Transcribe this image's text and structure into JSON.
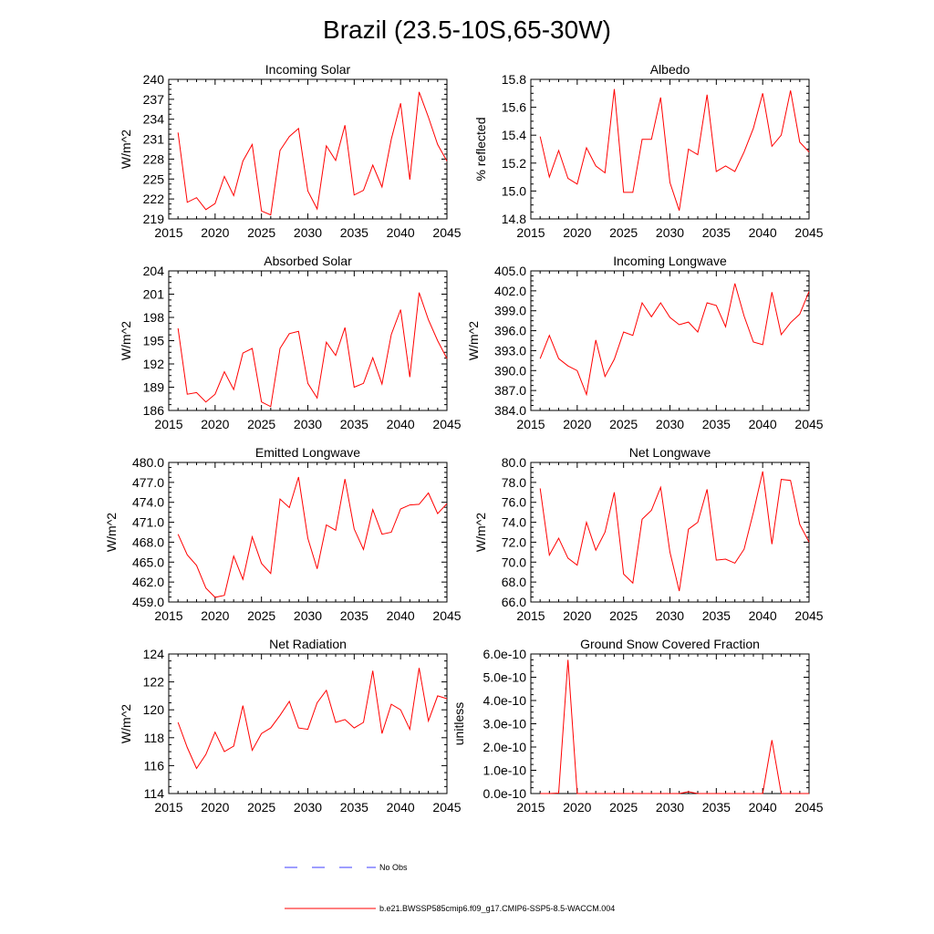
{
  "figure": {
    "title": "Brazil (23.5-10S,65-30W)"
  },
  "legend": {
    "items": [
      {
        "label": "No Obs",
        "style": "dashed",
        "color": "#3c3cff"
      },
      {
        "label": "b.e21.BWSSP585cmip6.f09_g17.CMIP6-SSP5-8.5-WACCM.004",
        "style": "solid",
        "color": "#ff0000"
      }
    ]
  },
  "chart_data": [
    {
      "type": "line",
      "title": "Incoming Solar",
      "xlabel": "",
      "ylabel": "W/m^2",
      "xlim": [
        2015,
        2045
      ],
      "ylim": [
        219,
        240
      ],
      "xticks": [
        2015,
        2020,
        2025,
        2030,
        2035,
        2040,
        2045
      ],
      "xtick_labels": [
        "2015",
        "2020",
        "2025",
        "2030",
        "2035",
        "2040",
        "2045"
      ],
      "yticks": [
        219,
        222,
        225,
        228,
        231,
        234,
        237,
        240
      ],
      "ytick_labels": [
        "219",
        "222",
        "225",
        "228",
        "231",
        "234",
        "237",
        "240"
      ],
      "series": [
        {
          "name": "b.e21.BWSSP585cmip6.f09_g17.CMIP6-SSP5-8.5-WACCM.004",
          "color": "#ff0000",
          "x": [
            2016,
            2017,
            2018,
            2019,
            2020,
            2021,
            2022,
            2023,
            2024,
            2025,
            2026,
            2027,
            2028,
            2029,
            2030,
            2031,
            2032,
            2033,
            2034,
            2035,
            2036,
            2037,
            2038,
            2039,
            2040,
            2041,
            2042,
            2043,
            2044,
            2045
          ],
          "values": [
            232.0,
            221.5,
            222.2,
            220.4,
            221.3,
            225.4,
            222.5,
            227.7,
            230.2,
            220.2,
            219.6,
            229.3,
            231.4,
            232.6,
            223.2,
            220.5,
            230.0,
            227.8,
            233.1,
            222.6,
            223.3,
            227.1,
            223.8,
            231.0,
            236.4,
            224.9,
            238.1,
            234.3,
            230.2,
            227.7
          ]
        }
      ]
    },
    {
      "type": "line",
      "title": "Albedo",
      "xlabel": "",
      "ylabel": "% reflected",
      "xlim": [
        2015,
        2045
      ],
      "ylim": [
        14.8,
        15.8
      ],
      "xticks": [
        2015,
        2020,
        2025,
        2030,
        2035,
        2040,
        2045
      ],
      "xtick_labels": [
        "2015",
        "2020",
        "2025",
        "2030",
        "2035",
        "2040",
        "2045"
      ],
      "yticks": [
        14.8,
        15.0,
        15.2,
        15.4,
        15.6,
        15.8
      ],
      "ytick_labels": [
        "14.8",
        "15.0",
        "15.2",
        "15.4",
        "15.6",
        "15.8"
      ],
      "series": [
        {
          "name": "b.e21.BWSSP585cmip6.f09_g17.CMIP6-SSP5-8.5-WACCM.004",
          "color": "#ff0000",
          "x": [
            2016,
            2017,
            2018,
            2019,
            2020,
            2021,
            2022,
            2023,
            2024,
            2025,
            2026,
            2027,
            2028,
            2029,
            2030,
            2031,
            2032,
            2033,
            2034,
            2035,
            2036,
            2037,
            2038,
            2039,
            2040,
            2041,
            2042,
            2043,
            2044,
            2045
          ],
          "values": [
            15.39,
            15.1,
            15.29,
            15.09,
            15.05,
            15.31,
            15.18,
            15.13,
            15.73,
            14.99,
            14.99,
            15.37,
            15.37,
            15.67,
            15.06,
            14.86,
            15.3,
            15.26,
            15.69,
            15.14,
            15.18,
            15.14,
            15.28,
            15.45,
            15.7,
            15.32,
            15.4,
            15.72,
            15.35,
            15.28
          ]
        }
      ]
    },
    {
      "type": "line",
      "title": "Absorbed Solar",
      "xlabel": "",
      "ylabel": "W/m^2",
      "xlim": [
        2015,
        2045
      ],
      "ylim": [
        186,
        204
      ],
      "xticks": [
        2015,
        2020,
        2025,
        2030,
        2035,
        2040,
        2045
      ],
      "xtick_labels": [
        "2015",
        "2020",
        "2025",
        "2030",
        "2035",
        "2040",
        "2045"
      ],
      "yticks": [
        186,
        189,
        192,
        195,
        198,
        201,
        204
      ],
      "ytick_labels": [
        "186",
        "189",
        "192",
        "195",
        "198",
        "201",
        "204"
      ],
      "series": [
        {
          "name": "b.e21.BWSSP585cmip6.f09_g17.CMIP6-SSP5-8.5-WACCM.004",
          "color": "#ff0000",
          "x": [
            2016,
            2017,
            2018,
            2019,
            2020,
            2021,
            2022,
            2023,
            2024,
            2025,
            2026,
            2027,
            2028,
            2029,
            2030,
            2031,
            2032,
            2033,
            2034,
            2035,
            2036,
            2037,
            2038,
            2039,
            2040,
            2041,
            2042,
            2043,
            2044,
            2045
          ],
          "values": [
            196.6,
            188.1,
            188.3,
            187.1,
            188.1,
            191.0,
            188.7,
            193.4,
            194.0,
            187.1,
            186.5,
            194.0,
            195.9,
            196.2,
            189.5,
            187.6,
            194.8,
            193.1,
            196.7,
            189.0,
            189.5,
            192.8,
            189.4,
            195.8,
            199.0,
            190.3,
            201.2,
            197.7,
            195.0,
            192.7
          ]
        }
      ]
    },
    {
      "type": "line",
      "title": "Incoming Longwave",
      "xlabel": "",
      "ylabel": "W/m^2",
      "xlim": [
        2015,
        2045
      ],
      "ylim": [
        384.0,
        405.0
      ],
      "xticks": [
        2015,
        2020,
        2025,
        2030,
        2035,
        2040,
        2045
      ],
      "xtick_labels": [
        "2015",
        "2020",
        "2025",
        "2030",
        "2035",
        "2040",
        "2045"
      ],
      "yticks": [
        384,
        387,
        390,
        393,
        396,
        399,
        402,
        405
      ],
      "ytick_labels": [
        "384.0",
        "387.0",
        "390.0",
        "393.0",
        "396.0",
        "399.0",
        "402.0",
        "405.0"
      ],
      "series": [
        {
          "name": "b.e21.BWSSP585cmip6.f09_g17.CMIP6-SSP5-8.5-WACCM.004",
          "color": "#ff0000",
          "x": [
            2016,
            2017,
            2018,
            2019,
            2020,
            2021,
            2022,
            2023,
            2024,
            2025,
            2026,
            2027,
            2028,
            2029,
            2030,
            2031,
            2032,
            2033,
            2034,
            2035,
            2036,
            2037,
            2038,
            2039,
            2040,
            2041,
            2042,
            2043,
            2044,
            2045
          ],
          "values": [
            391.8,
            395.3,
            391.8,
            390.7,
            390.0,
            386.4,
            394.6,
            389.1,
            391.7,
            395.8,
            395.3,
            400.2,
            398.1,
            400.2,
            398.0,
            396.9,
            397.3,
            395.8,
            400.2,
            399.8,
            396.6,
            403.1,
            398.2,
            394.3,
            393.9,
            401.8,
            395.4,
            397.2,
            398.5,
            401.9
          ]
        }
      ]
    },
    {
      "type": "line",
      "title": "Emitted Longwave",
      "xlabel": "",
      "ylabel": "W/m^2",
      "xlim": [
        2015,
        2045
      ],
      "ylim": [
        459.0,
        480.0
      ],
      "xticks": [
        2015,
        2020,
        2025,
        2030,
        2035,
        2040,
        2045
      ],
      "xtick_labels": [
        "2015",
        "2020",
        "2025",
        "2030",
        "2035",
        "2040",
        "2045"
      ],
      "yticks": [
        459,
        462,
        465,
        468,
        471,
        474,
        477,
        480
      ],
      "ytick_labels": [
        "459.0",
        "462.0",
        "465.0",
        "468.0",
        "471.0",
        "474.0",
        "477.0",
        "480.0"
      ],
      "series": [
        {
          "name": "b.e21.BWSSP585cmip6.f09_g17.CMIP6-SSP5-8.5-WACCM.004",
          "color": "#ff0000",
          "x": [
            2016,
            2017,
            2018,
            2019,
            2020,
            2021,
            2022,
            2023,
            2024,
            2025,
            2026,
            2027,
            2028,
            2029,
            2030,
            2031,
            2032,
            2033,
            2034,
            2035,
            2036,
            2037,
            2038,
            2039,
            2040,
            2041,
            2042,
            2043,
            2044,
            2045
          ],
          "values": [
            469.2,
            466.1,
            464.5,
            461.1,
            459.7,
            460.0,
            465.9,
            462.4,
            468.8,
            464.8,
            463.3,
            474.5,
            473.2,
            477.8,
            468.6,
            464.0,
            470.6,
            469.8,
            477.5,
            470.0,
            466.9,
            472.9,
            469.2,
            469.5,
            473.0,
            473.6,
            473.7,
            475.4,
            472.3,
            473.8
          ]
        }
      ]
    },
    {
      "type": "line",
      "title": "Net Longwave",
      "xlabel": "",
      "ylabel": "W/m^2",
      "xlim": [
        2015,
        2045
      ],
      "ylim": [
        66.0,
        80.0
      ],
      "xticks": [
        2015,
        2020,
        2025,
        2030,
        2035,
        2040,
        2045
      ],
      "xtick_labels": [
        "2015",
        "2020",
        "2025",
        "2030",
        "2035",
        "2040",
        "2045"
      ],
      "yticks": [
        66,
        68,
        70,
        72,
        74,
        76,
        78,
        80
      ],
      "ytick_labels": [
        "66.0",
        "68.0",
        "70.0",
        "72.0",
        "74.0",
        "76.0",
        "78.0",
        "80.0"
      ],
      "series": [
        {
          "name": "b.e21.BWSSP585cmip6.f09_g17.CMIP6-SSP5-8.5-WACCM.004",
          "color": "#ff0000",
          "x": [
            2016,
            2017,
            2018,
            2019,
            2020,
            2021,
            2022,
            2023,
            2024,
            2025,
            2026,
            2027,
            2028,
            2029,
            2030,
            2031,
            2032,
            2033,
            2034,
            2035,
            2036,
            2037,
            2038,
            2039,
            2040,
            2041,
            2042,
            2043,
            2044,
            2045
          ],
          "values": [
            77.4,
            70.7,
            72.4,
            70.4,
            69.7,
            74.0,
            71.2,
            73.0,
            77.0,
            68.8,
            67.9,
            74.3,
            75.2,
            77.5,
            71.0,
            67.1,
            73.3,
            74.0,
            77.3,
            70.2,
            70.3,
            69.9,
            71.3,
            75.0,
            79.1,
            71.8,
            78.3,
            78.2,
            73.8,
            72.0
          ]
        }
      ]
    },
    {
      "type": "line",
      "title": "Net Radiation",
      "xlabel": "",
      "ylabel": "W/m^2",
      "xlim": [
        2015,
        2045
      ],
      "ylim": [
        114,
        124
      ],
      "xticks": [
        2015,
        2020,
        2025,
        2030,
        2035,
        2040,
        2045
      ],
      "xtick_labels": [
        "2015",
        "2020",
        "2025",
        "2030",
        "2035",
        "2040",
        "2045"
      ],
      "yticks": [
        114,
        116,
        118,
        120,
        122,
        124
      ],
      "ytick_labels": [
        "114",
        "116",
        "118",
        "120",
        "122",
        "124"
      ],
      "series": [
        {
          "name": "b.e21.BWSSP585cmip6.f09_g17.CMIP6-SSP5-8.5-WACCM.004",
          "color": "#ff0000",
          "x": [
            2016,
            2017,
            2018,
            2019,
            2020,
            2021,
            2022,
            2023,
            2024,
            2025,
            2026,
            2027,
            2028,
            2029,
            2030,
            2031,
            2032,
            2033,
            2034,
            2035,
            2036,
            2037,
            2038,
            2039,
            2040,
            2041,
            2042,
            2043,
            2044,
            2045
          ],
          "values": [
            119.1,
            117.3,
            115.8,
            116.8,
            118.4,
            117.0,
            117.4,
            120.3,
            117.1,
            118.3,
            118.7,
            119.6,
            120.6,
            118.7,
            118.6,
            120.5,
            121.4,
            119.1,
            119.3,
            118.7,
            119.1,
            122.8,
            118.3,
            120.4,
            120.0,
            118.6,
            123.0,
            119.2,
            121.0,
            120.8
          ]
        }
      ]
    },
    {
      "type": "line",
      "title": "Ground Snow Covered Fraction",
      "xlabel": "",
      "ylabel": "unitless",
      "xlim": [
        2015,
        2045
      ],
      "ylim": [
        0,
        6e-10
      ],
      "xticks": [
        2015,
        2020,
        2025,
        2030,
        2035,
        2040,
        2045
      ],
      "xtick_labels": [
        "2015",
        "2020",
        "2025",
        "2030",
        "2035",
        "2040",
        "2045"
      ],
      "yticks": [
        0,
        1e-10,
        2e-10,
        3e-10,
        4e-10,
        5e-10,
        6e-10
      ],
      "ytick_labels": [
        "0.0e-10",
        "1.0e-10",
        "2.0e-10",
        "3.0e-10",
        "4.0e-10",
        "5.0e-10",
        "6.0e-10"
      ],
      "series": [
        {
          "name": "b.e21.BWSSP585cmip6.f09_g17.CMIP6-SSP5-8.5-WACCM.004",
          "color": "#ff0000",
          "x": [
            2016,
            2017,
            2018,
            2019,
            2020,
            2021,
            2022,
            2023,
            2024,
            2025,
            2026,
            2027,
            2028,
            2029,
            2030,
            2031,
            2032,
            2033,
            2034,
            2035,
            2036,
            2037,
            2038,
            2039,
            2040,
            2041,
            2042,
            2043,
            2044,
            2045
          ],
          "values": [
            0,
            0,
            2e-12,
            5.75e-10,
            0,
            0,
            0,
            0,
            0,
            0,
            0,
            0,
            0,
            0,
            0,
            0,
            8e-12,
            0,
            0,
            0,
            0,
            0,
            0,
            0,
            0,
            2.3e-10,
            0,
            0,
            0,
            0
          ]
        }
      ]
    }
  ]
}
